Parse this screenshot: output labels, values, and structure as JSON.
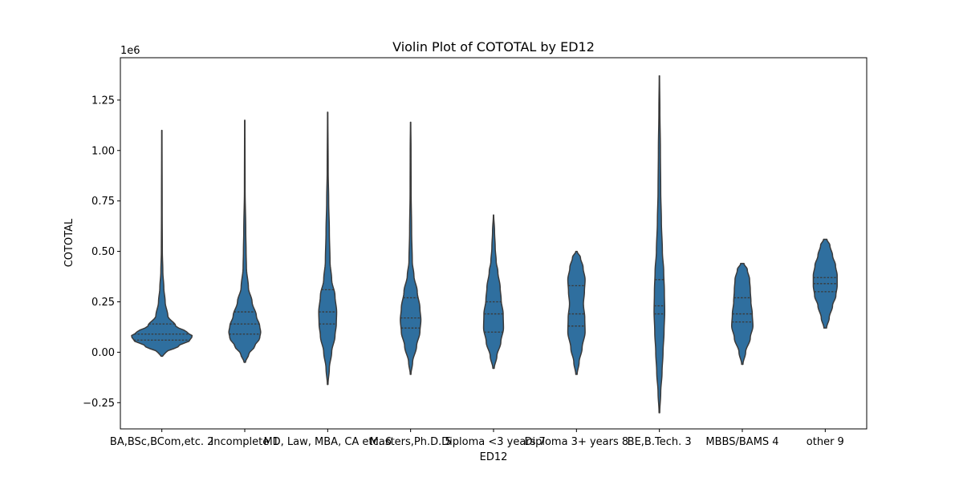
{
  "chart_data": {
    "type": "violin",
    "title": "Violin Plot of COTOTAL by ED12",
    "xlabel": "ED12",
    "ylabel": "COTOTAL",
    "y_scale_label": "1e6",
    "y_ticks": [
      -0.25,
      0.0,
      0.25,
      0.5,
      0.75,
      1.0,
      1.25
    ],
    "y_tick_labels": [
      "−0.25",
      "0.00",
      "0.25",
      "0.50",
      "0.75",
      "1.00",
      "1.25"
    ],
    "ylim": [
      -0.38,
      1.46
    ],
    "categories": [
      "BA,BSc,BCom,etc. 2",
      "Incomplete 1",
      "MD, Law, MBA, CA etc. 6",
      "Masters,Ph.D. 5",
      "Diploma <3 years 7",
      "Diploma 3+ years 8",
      "BE,B.Tech. 3",
      "MBBS/BAMS 4",
      "other 9"
    ],
    "color": "#2f6f9f",
    "violins": [
      {
        "min": -0.02,
        "max": 1.1,
        "q1": 0.06,
        "median": 0.09,
        "q3": 0.14,
        "profile": [
          [
            -0.02,
            0.02
          ],
          [
            0.0,
            0.12
          ],
          [
            0.03,
            0.5
          ],
          [
            0.06,
            0.85
          ],
          [
            0.08,
            0.92
          ],
          [
            0.1,
            0.75
          ],
          [
            0.13,
            0.42
          ],
          [
            0.18,
            0.18
          ],
          [
            0.25,
            0.1
          ],
          [
            0.32,
            0.06
          ],
          [
            0.4,
            0.03
          ],
          [
            0.5,
            0.015
          ],
          [
            0.7,
            0.01
          ],
          [
            1.1,
            0.005
          ]
        ]
      },
      {
        "min": -0.05,
        "max": 1.15,
        "q1": 0.09,
        "median": 0.14,
        "q3": 0.2,
        "profile": [
          [
            -0.05,
            0.02
          ],
          [
            -0.01,
            0.12
          ],
          [
            0.03,
            0.3
          ],
          [
            0.07,
            0.45
          ],
          [
            0.1,
            0.48
          ],
          [
            0.13,
            0.45
          ],
          [
            0.18,
            0.35
          ],
          [
            0.25,
            0.22
          ],
          [
            0.32,
            0.11
          ],
          [
            0.42,
            0.05
          ],
          [
            0.5,
            0.04
          ],
          [
            0.6,
            0.03
          ],
          [
            0.8,
            0.01
          ],
          [
            1.15,
            0.005
          ]
        ]
      },
      {
        "min": -0.16,
        "max": 1.19,
        "q1": 0.14,
        "median": 0.2,
        "q3": 0.31,
        "profile": [
          [
            -0.16,
            0.01
          ],
          [
            -0.08,
            0.05
          ],
          [
            0.0,
            0.12
          ],
          [
            0.08,
            0.22
          ],
          [
            0.14,
            0.26
          ],
          [
            0.2,
            0.27
          ],
          [
            0.28,
            0.22
          ],
          [
            0.36,
            0.12
          ],
          [
            0.45,
            0.07
          ],
          [
            0.6,
            0.05
          ],
          [
            0.75,
            0.03
          ],
          [
            0.9,
            0.015
          ],
          [
            1.19,
            0.005
          ]
        ]
      },
      {
        "min": -0.11,
        "max": 1.14,
        "q1": 0.12,
        "median": 0.17,
        "q3": 0.27,
        "profile": [
          [
            -0.11,
            0.01
          ],
          [
            -0.05,
            0.06
          ],
          [
            0.03,
            0.18
          ],
          [
            0.1,
            0.28
          ],
          [
            0.16,
            0.31
          ],
          [
            0.22,
            0.28
          ],
          [
            0.3,
            0.2
          ],
          [
            0.38,
            0.1
          ],
          [
            0.45,
            0.05
          ],
          [
            0.6,
            0.03
          ],
          [
            0.8,
            0.015
          ],
          [
            1.0,
            0.012
          ],
          [
            1.14,
            0.005
          ]
        ]
      },
      {
        "min": -0.08,
        "max": 0.68,
        "q1": 0.1,
        "median": 0.19,
        "q3": 0.25,
        "profile": [
          [
            -0.08,
            0.02
          ],
          [
            -0.02,
            0.1
          ],
          [
            0.05,
            0.22
          ],
          [
            0.12,
            0.3
          ],
          [
            0.19,
            0.29
          ],
          [
            0.26,
            0.23
          ],
          [
            0.32,
            0.2
          ],
          [
            0.4,
            0.13
          ],
          [
            0.45,
            0.08
          ],
          [
            0.52,
            0.05
          ],
          [
            0.6,
            0.03
          ],
          [
            0.68,
            0.005
          ]
        ]
      },
      {
        "min": -0.11,
        "max": 0.5,
        "q1": 0.13,
        "median": 0.19,
        "q3": 0.33,
        "profile": [
          [
            -0.11,
            0.02
          ],
          [
            -0.05,
            0.08
          ],
          [
            0.02,
            0.17
          ],
          [
            0.1,
            0.26
          ],
          [
            0.17,
            0.25
          ],
          [
            0.24,
            0.21
          ],
          [
            0.3,
            0.24
          ],
          [
            0.36,
            0.26
          ],
          [
            0.42,
            0.2
          ],
          [
            0.47,
            0.12
          ],
          [
            0.5,
            0.02
          ]
        ]
      },
      {
        "min": -0.3,
        "max": 1.37,
        "q1": 0.19,
        "median": 0.23,
        "q3": 0.36,
        "profile": [
          [
            -0.3,
            0.01
          ],
          [
            -0.2,
            0.04
          ],
          [
            -0.1,
            0.08
          ],
          [
            0.0,
            0.11
          ],
          [
            0.1,
            0.14
          ],
          [
            0.2,
            0.16
          ],
          [
            0.3,
            0.15
          ],
          [
            0.4,
            0.13
          ],
          [
            0.5,
            0.09
          ],
          [
            0.65,
            0.06
          ],
          [
            0.8,
            0.04
          ],
          [
            1.0,
            0.03
          ],
          [
            1.2,
            0.015
          ],
          [
            1.37,
            0.005
          ]
        ]
      },
      {
        "min": -0.06,
        "max": 0.44,
        "q1": 0.15,
        "median": 0.19,
        "q3": 0.27,
        "profile": [
          [
            -0.06,
            0.02
          ],
          [
            0.0,
            0.1
          ],
          [
            0.07,
            0.24
          ],
          [
            0.13,
            0.32
          ],
          [
            0.19,
            0.3
          ],
          [
            0.25,
            0.26
          ],
          [
            0.31,
            0.24
          ],
          [
            0.36,
            0.22
          ],
          [
            0.41,
            0.15
          ],
          [
            0.44,
            0.05
          ]
        ]
      },
      {
        "min": 0.12,
        "max": 0.56,
        "q1": 0.3,
        "median": 0.34,
        "q3": 0.37,
        "profile": [
          [
            0.12,
            0.04
          ],
          [
            0.17,
            0.12
          ],
          [
            0.23,
            0.22
          ],
          [
            0.28,
            0.32
          ],
          [
            0.33,
            0.36
          ],
          [
            0.38,
            0.36
          ],
          [
            0.43,
            0.31
          ],
          [
            0.48,
            0.22
          ],
          [
            0.53,
            0.14
          ],
          [
            0.56,
            0.05
          ]
        ]
      }
    ]
  }
}
